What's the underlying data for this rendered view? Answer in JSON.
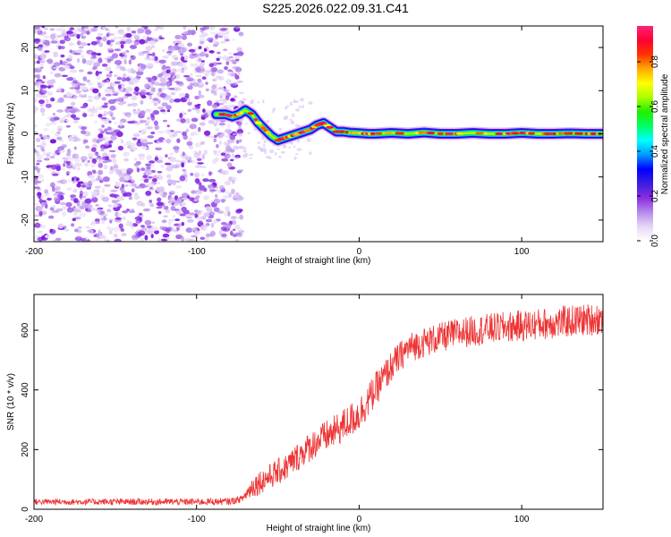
{
  "title": "S225.2026.022.09.31.C41",
  "chart_data": [
    {
      "type": "heatmap",
      "xlabel": "Height of straight line (km)",
      "ylabel": "Frequency (Hz)",
      "xlim": [
        -200,
        150
      ],
      "ylim": [
        -25,
        25
      ],
      "xticks": [
        -200,
        -100,
        0,
        100
      ],
      "yticks": [
        -20,
        -10,
        0,
        10,
        20
      ],
      "noise_region_x": [
        -200,
        -78
      ],
      "ridge": {
        "x": [
          -88,
          -82,
          -78,
          -74,
          -70,
          -66,
          -62,
          -58,
          -54,
          -50,
          -46,
          -42,
          -38,
          -34,
          -30,
          -26,
          -22,
          -18,
          -14,
          -10,
          -6,
          -2,
          2,
          6,
          10,
          20,
          30,
          40,
          50,
          60,
          70,
          80,
          90,
          100,
          110,
          120,
          130,
          140,
          150
        ],
        "freq": [
          4.5,
          4.5,
          4.0,
          4.5,
          5.5,
          4.5,
          2.5,
          1.0,
          -0.5,
          -1.5,
          -1.0,
          -0.5,
          0.0,
          0.5,
          1.0,
          2.0,
          2.5,
          1.5,
          0.5,
          0.5,
          0.3,
          0.2,
          0.1,
          0.0,
          0.0,
          0.2,
          0.0,
          0.3,
          0.0,
          0.0,
          0.2,
          0.0,
          0.0,
          0.2,
          0.0,
          0.0,
          0.1,
          0.0,
          0.0
        ]
      },
      "colorbar": {
        "label": "Normalized spectral amplitude",
        "ticks": [
          "0.0",
          "0.2",
          "0.4",
          "0.6",
          "0.8"
        ],
        "range": [
          0,
          0.96
        ],
        "colors": [
          "#ffffff",
          "#e6d6f5",
          "#b58aeb",
          "#8a2be2",
          "#3a1ee0",
          "#0000ff",
          "#0099ff",
          "#00ffff",
          "#00ff66",
          "#22ee00",
          "#aaff00",
          "#ffff00",
          "#ffaa00",
          "#ff3300",
          "#ff0033",
          "#ff2277"
        ]
      }
    },
    {
      "type": "line",
      "xlabel": "Height of straight line (km)",
      "ylabel": "SNR (10 * v/v)",
      "xlim": [
        -200,
        150
      ],
      "ylim": [
        0,
        720
      ],
      "xticks": [
        -200,
        -100,
        0,
        100
      ],
      "yticks": [
        0,
        200,
        400,
        600
      ],
      "series": [
        {
          "name": "SNR",
          "color": "#ee3333",
          "trend_x": [
            -200,
            -150,
            -100,
            -80,
            -72,
            -65,
            -55,
            -45,
            -35,
            -25,
            -15,
            -10,
            -5,
            0,
            5,
            10,
            15,
            20,
            25,
            30,
            40,
            50,
            60,
            80,
            100,
            120,
            150
          ],
          "trend_y": [
            25,
            25,
            25,
            26,
            35,
            80,
            110,
            140,
            190,
            230,
            260,
            280,
            300,
            320,
            360,
            400,
            440,
            480,
            510,
            540,
            560,
            575,
            590,
            605,
            615,
            625,
            640
          ],
          "noise_amplitude_x": [
            -200,
            -72,
            -65,
            0,
            30,
            150
          ],
          "noise_amplitude_y": [
            10,
            12,
            40,
            60,
            50,
            55
          ]
        }
      ]
    }
  ]
}
